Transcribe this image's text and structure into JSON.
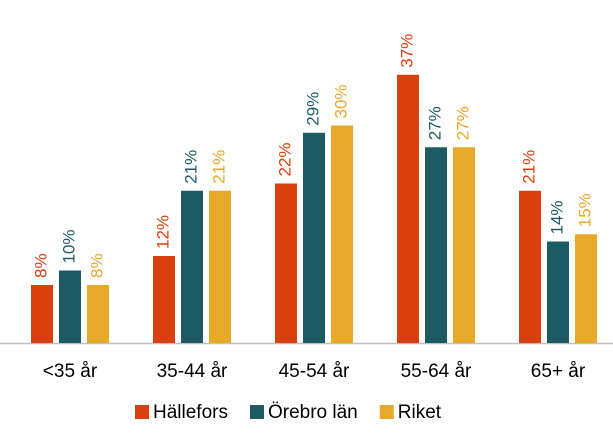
{
  "chart_data": {
    "type": "bar",
    "categories": [
      "<35 år",
      "35-44 år",
      "45-54 år",
      "55-64 år",
      "65+ år"
    ],
    "series": [
      {
        "name": "Hällefors",
        "color": "#d9400f",
        "values": [
          8,
          12,
          22,
          37,
          21
        ],
        "value_labels": [
          "8%",
          "12%",
          "22%",
          "37%",
          "21%"
        ]
      },
      {
        "name": "Örebro län",
        "color": "#1e5a63",
        "values": [
          10,
          21,
          29,
          27,
          14
        ],
        "value_labels": [
          "10%",
          "21%",
          "29%",
          "27%",
          "14%"
        ]
      },
      {
        "name": "Riket",
        "color": "#e8a82a",
        "values": [
          8,
          21,
          30,
          27,
          15
        ],
        "value_labels": [
          "8%",
          "21%",
          "30%",
          "27%",
          "15%"
        ]
      }
    ],
    "ylim": [
      0,
      40
    ],
    "legend": "bottom"
  }
}
